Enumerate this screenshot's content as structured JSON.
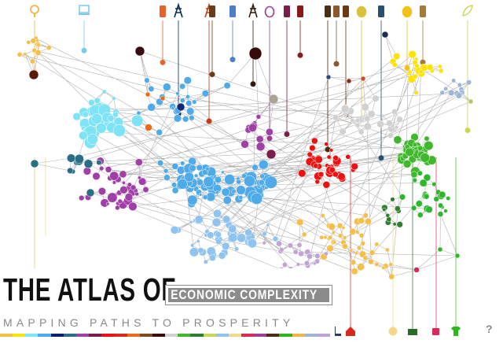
{
  "title": {
    "main": "THE ATLAS OF",
    "boxed": "ECONOMIC COMPLEXITY",
    "subtitle": "MAPPING PATHS TO PROSPERITY"
  },
  "help_label": "?",
  "palette": {
    "textiles": "#f5c04a",
    "machinery": "#7ee3f5",
    "electronics": "#8fc4f0",
    "chemicals": "#a03fa7",
    "metals": "#4eaae8",
    "vehicles": "#d1d1d1",
    "agriculture": "#3fb82c",
    "garments": "#2db82c",
    "minerals": "#7b4a1e",
    "food": "#ffe200",
    "red_cluster": "#ee1111",
    "fish": "#f0f0a0",
    "dark": "#4a1010",
    "orange": "#ea6a1a",
    "navy": "#0b1d6a",
    "teal": "#2a6e86"
  },
  "top_icons": [
    {
      "name": "gem-icon",
      "color": "#f3b545"
    },
    {
      "name": "computer-icon",
      "color": "#79c9e8"
    },
    {
      "name": "fruit-tree-icon",
      "color": "#e8612a"
    },
    {
      "name": "anchor-icon",
      "color": "#0b2a5c"
    },
    {
      "name": "tools-icon",
      "color": "#c63a12"
    },
    {
      "name": "hammer-icon",
      "color": "#6a3a1a"
    },
    {
      "name": "anvil-icon",
      "color": "#4e7ec8"
    },
    {
      "name": "oil-derrick-icon",
      "color": "#311b0b"
    },
    {
      "name": "flask-icon",
      "color": "#9c3d96"
    },
    {
      "name": "factory-icon",
      "color": "#7a1d4a"
    },
    {
      "name": "bottle-icon",
      "color": "#8a1a1a"
    },
    {
      "name": "oil-barrel-icon",
      "color": "#4a2d12"
    },
    {
      "name": "bottles-icon",
      "color": "#8a5a2a"
    },
    {
      "name": "bottles-icon",
      "color": "#6a3b12"
    },
    {
      "name": "egg-icon",
      "color": "#d8c23a"
    },
    {
      "name": "spool-icon",
      "color": "#2a4e6e"
    },
    {
      "name": "apple-icon",
      "color": "#f2c21a"
    },
    {
      "name": "milk-carton-icon",
      "color": "#a57a3a"
    },
    {
      "name": "leaf-icon",
      "color": "#c8d855"
    }
  ],
  "bottom_icons": [
    {
      "name": "boot-icon",
      "color": "#2a3a6a"
    },
    {
      "name": "house-icon",
      "color": "#d8281a"
    },
    {
      "name": "brain-icon",
      "color": "#f5d78a"
    },
    {
      "name": "sewing-machine-icon",
      "color": "#2a6b2a"
    },
    {
      "name": "coffee-cup-icon",
      "color": "#d82a5a"
    },
    {
      "name": "tshirt-icon",
      "color": "#2ab81a"
    }
  ]
}
